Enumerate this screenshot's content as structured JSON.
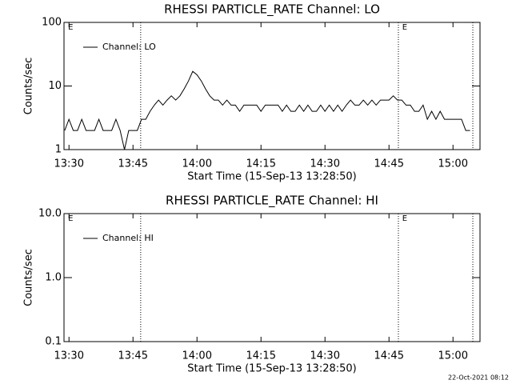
{
  "chart_data": [
    {
      "type": "line",
      "title": "RHESSI PARTICLE_RATE Channel: LO",
      "xlabel": "Start Time (15-Sep-13 13:28:50)",
      "ylabel": "Counts/sec",
      "log_y": true,
      "legend": "upper left",
      "x": [
        809,
        810,
        811,
        812,
        813,
        814,
        815,
        816,
        817,
        818,
        819,
        820,
        821,
        822,
        823,
        824,
        825,
        826,
        827,
        828,
        829,
        830,
        831,
        832,
        833,
        834,
        835,
        836,
        837,
        838,
        839,
        840,
        841,
        842,
        843,
        844,
        845,
        846,
        847,
        848,
        849,
        850,
        851,
        852,
        853,
        854,
        855,
        856,
        857,
        858,
        859,
        860,
        861,
        862,
        863,
        864,
        865,
        866,
        867,
        868,
        869,
        870,
        871,
        872,
        873,
        874,
        875,
        876,
        877,
        878,
        879,
        880,
        881,
        882,
        883,
        884,
        885,
        886,
        887,
        888,
        889,
        890,
        891,
        892,
        893,
        894,
        895,
        896,
        897,
        898,
        899,
        900,
        901,
        902,
        903,
        904
      ],
      "series": [
        {
          "name": "Channel: LO",
          "color": "#000000",
          "values": [
            2,
            3,
            2,
            2,
            3,
            2,
            2,
            2,
            3,
            2,
            2,
            2,
            3,
            2,
            1,
            2,
            2,
            2,
            3,
            3,
            4,
            5,
            6,
            5,
            6,
            7,
            6,
            7,
            9,
            12,
            17,
            15,
            12,
            9,
            7,
            6,
            6,
            5,
            6,
            5,
            5,
            4,
            5,
            5,
            5,
            5,
            4,
            5,
            5,
            5,
            5,
            4,
            5,
            4,
            4,
            5,
            4,
            5,
            4,
            4,
            5,
            4,
            5,
            4,
            5,
            4,
            5,
            6,
            5,
            5,
            6,
            5,
            6,
            5,
            6,
            6,
            6,
            7,
            6,
            6,
            5,
            5,
            4,
            4,
            5,
            3,
            4,
            3,
            4,
            3,
            3,
            3,
            3,
            3,
            2,
            2
          ]
        }
      ],
      "xlim": [
        808.83,
        906.33
      ],
      "ylim": [
        1,
        100
      ],
      "xticks": [
        {
          "value": 810,
          "label": "13:30"
        },
        {
          "value": 825,
          "label": "13:45"
        },
        {
          "value": 840,
          "label": "14:00"
        },
        {
          "value": 855,
          "label": "14:15"
        },
        {
          "value": 870,
          "label": "14:30"
        },
        {
          "value": 885,
          "label": "14:45"
        },
        {
          "value": 900,
          "label": "15:00"
        }
      ],
      "yticks": [
        1,
        10,
        100
      ],
      "vlines": [
        826.8,
        887.2,
        904.65
      ],
      "annotations": [
        {
          "text": "E",
          "x": 809.6
        },
        {
          "text": "E",
          "x": 887.9
        }
      ]
    },
    {
      "type": "line",
      "title": "RHESSI PARTICLE_RATE Channel: HI",
      "xlabel": "Start Time (15-Sep-13 13:28:50)",
      "ylabel": "Counts/sec",
      "log_y": true,
      "legend": "upper left",
      "x": [],
      "series": [
        {
          "name": "Channel: HI",
          "color": "#000000",
          "values": []
        }
      ],
      "xlim": [
        808.83,
        906.33
      ],
      "ylim": [
        0.1,
        10
      ],
      "xticks": [
        {
          "value": 810,
          "label": "13:30"
        },
        {
          "value": 825,
          "label": "13:45"
        },
        {
          "value": 840,
          "label": "14:00"
        },
        {
          "value": 855,
          "label": "14:15"
        },
        {
          "value": 870,
          "label": "14:30"
        },
        {
          "value": 885,
          "label": "14:45"
        },
        {
          "value": 900,
          "label": "15:00"
        }
      ],
      "yticks": [
        0.1,
        {
          "value": 1,
          "label": "1.0"
        },
        {
          "value": 10,
          "label": "10.0"
        }
      ],
      "vlines": [
        826.8,
        887.2,
        904.65
      ],
      "annotations": [
        {
          "text": "E",
          "x": 809.6
        },
        {
          "text": "E",
          "x": 887.9
        }
      ]
    }
  ],
  "footer": "22-Oct-2021 08:12"
}
